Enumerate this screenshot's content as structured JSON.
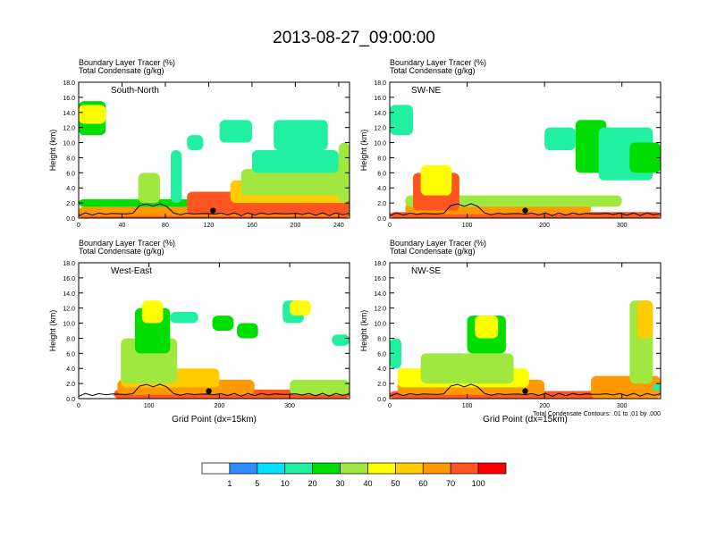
{
  "title": "2013-08-27_09:00:00",
  "chart_data": [
    {
      "type": "heatmap",
      "label": "South-North",
      "header": [
        "Boundary Layer Tracer    (%)",
        "Total Condensate    (g/kg)"
      ],
      "ylabel": "Height (km)",
      "xlabel": "",
      "yticks": [
        "0.0",
        "2.0",
        "4.0",
        "6.0",
        "8.0",
        "10.0",
        "12.0",
        "14.0",
        "16.0",
        "18.0"
      ],
      "ylim": [
        0,
        18
      ],
      "xlim": [
        0,
        250
      ],
      "xticks": [
        "0",
        "40",
        "80",
        "120",
        "160",
        "200",
        "240"
      ],
      "xtick_values": [
        0,
        40,
        80,
        120,
        160,
        200,
        240
      ],
      "marker": {
        "x": 124,
        "y": 1.0
      },
      "blobs": [
        {
          "x": [
            0,
            250
          ],
          "y": [
            0,
            0.8
          ],
          "v": 70
        },
        {
          "x": [
            0,
            250
          ],
          "y": [
            0.3,
            1.5
          ],
          "v": 60
        },
        {
          "x": [
            0,
            250
          ],
          "y": [
            1.5,
            2.5
          ],
          "v": 20
        },
        {
          "x": [
            100,
            250
          ],
          "y": [
            0.5,
            3.5
          ],
          "v": 70
        },
        {
          "x": [
            140,
            250
          ],
          "y": [
            2,
            5
          ],
          "v": 50
        },
        {
          "x": [
            150,
            250
          ],
          "y": [
            3,
            6.5
          ],
          "v": 30
        },
        {
          "x": [
            160,
            240
          ],
          "y": [
            6,
            9
          ],
          "v": 10
        },
        {
          "x": [
            130,
            160
          ],
          "y": [
            10,
            13
          ],
          "v": 10
        },
        {
          "x": [
            180,
            230
          ],
          "y": [
            9,
            13
          ],
          "v": 10
        },
        {
          "x": [
            0,
            25
          ],
          "y": [
            11,
            15.5
          ],
          "v": 20
        },
        {
          "x": [
            0,
            25
          ],
          "y": [
            12.5,
            15
          ],
          "v": 40
        },
        {
          "x": [
            55,
            75
          ],
          "y": [
            2,
            6
          ],
          "v": 30
        },
        {
          "x": [
            85,
            95
          ],
          "y": [
            2,
            9
          ],
          "v": 10
        },
        {
          "x": [
            100,
            115
          ],
          "y": [
            9,
            11
          ],
          "v": 10
        },
        {
          "x": [
            240,
            250
          ],
          "y": [
            2,
            10
          ],
          "v": 30
        }
      ]
    },
    {
      "type": "heatmap",
      "label": "SW-NE",
      "header": [
        "Boundary Layer Tracer    (%)",
        "Total Condensate    (g/kg)"
      ],
      "ylabel": "Height (km)",
      "xlabel": "",
      "yticks": [
        "0.0",
        "2.0",
        "4.0",
        "6.0",
        "8.0",
        "10.0",
        "12.0",
        "14.0",
        "16.0",
        "18.0"
      ],
      "ylim": [
        0,
        18
      ],
      "xlim": [
        0,
        350
      ],
      "xticks": [
        "0",
        "100",
        "200",
        "300"
      ],
      "xtick_values": [
        0,
        100,
        200,
        300
      ],
      "marker": {
        "x": 175,
        "y": 1.0
      },
      "blobs": [
        {
          "x": [
            0,
            350
          ],
          "y": [
            0,
            0.8
          ],
          "v": 70
        },
        {
          "x": [
            20,
            260
          ],
          "y": [
            0.5,
            2
          ],
          "v": 60
        },
        {
          "x": [
            20,
            300
          ],
          "y": [
            1.5,
            3
          ],
          "v": 30
        },
        {
          "x": [
            30,
            90
          ],
          "y": [
            1,
            6
          ],
          "v": 70
        },
        {
          "x": [
            40,
            80
          ],
          "y": [
            3,
            7
          ],
          "v": 40
        },
        {
          "x": [
            0,
            30
          ],
          "y": [
            11,
            15
          ],
          "v": 10
        },
        {
          "x": [
            240,
            280
          ],
          "y": [
            6,
            13
          ],
          "v": 20
        },
        {
          "x": [
            270,
            340
          ],
          "y": [
            5,
            12
          ],
          "v": 10
        },
        {
          "x": [
            200,
            240
          ],
          "y": [
            9,
            12
          ],
          "v": 10
        },
        {
          "x": [
            310,
            350
          ],
          "y": [
            6,
            10
          ],
          "v": 20
        }
      ]
    },
    {
      "type": "heatmap",
      "label": "West-East",
      "header": [
        "Boundary Layer Tracer    (%)",
        "Total Condensate    (g/kg)"
      ],
      "ylabel": "Height (km)",
      "xlabel": "Grid Point (dx=15km)",
      "yticks": [
        "0.0",
        "2.0",
        "4.0",
        "6.0",
        "8.0",
        "10.0",
        "12.0",
        "14.0",
        "16.0",
        "18.0"
      ],
      "ylim": [
        0,
        18
      ],
      "xlim": [
        0,
        385
      ],
      "xticks": [
        "0",
        "100",
        "200",
        "300"
      ],
      "xtick_values": [
        0,
        100,
        200,
        300
      ],
      "marker": {
        "x": 185,
        "y": 1.0
      },
      "blobs": [
        {
          "x": [
            50,
            385
          ],
          "y": [
            0,
            1.2
          ],
          "v": 70
        },
        {
          "x": [
            55,
            250
          ],
          "y": [
            0.5,
            2.5
          ],
          "v": 60
        },
        {
          "x": [
            60,
            200
          ],
          "y": [
            1.5,
            4
          ],
          "v": 50
        },
        {
          "x": [
            60,
            140
          ],
          "y": [
            2,
            8
          ],
          "v": 30
        },
        {
          "x": [
            80,
            130
          ],
          "y": [
            6,
            12
          ],
          "v": 20
        },
        {
          "x": [
            90,
            120
          ],
          "y": [
            10,
            13
          ],
          "v": 40
        },
        {
          "x": [
            130,
            170
          ],
          "y": [
            10,
            11.5
          ],
          "v": 10
        },
        {
          "x": [
            190,
            220
          ],
          "y": [
            9,
            11
          ],
          "v": 20
        },
        {
          "x": [
            225,
            255
          ],
          "y": [
            8,
            10
          ],
          "v": 20
        },
        {
          "x": [
            290,
            320
          ],
          "y": [
            10,
            13
          ],
          "v": 10
        },
        {
          "x": [
            300,
            330
          ],
          "y": [
            11,
            13
          ],
          "v": 40
        },
        {
          "x": [
            360,
            385
          ],
          "y": [
            7,
            8.5
          ],
          "v": 10
        },
        {
          "x": [
            300,
            385
          ],
          "y": [
            0.5,
            2.5
          ],
          "v": 30
        }
      ]
    },
    {
      "type": "heatmap",
      "label": "NW-SE",
      "header": [
        "Boundary Layer Tracer    (%)",
        "Total Condensate    (g/kg)"
      ],
      "ylabel": "Height (km)",
      "xlabel": "Grid Point (dx=15km)",
      "yticks": [
        "0.0",
        "2.0",
        "4.0",
        "6.0",
        "8.0",
        "10.0",
        "12.0",
        "14.0",
        "16.0",
        "18.0"
      ],
      "ylim": [
        0,
        18
      ],
      "xlim": [
        0,
        350
      ],
      "xticks": [
        "0",
        "100",
        "200",
        "300"
      ],
      "xtick_values": [
        0,
        100,
        200,
        300
      ],
      "marker": {
        "x": 175,
        "y": 1.0
      },
      "blobs": [
        {
          "x": [
            0,
            280
          ],
          "y": [
            0,
            1
          ],
          "v": 70
        },
        {
          "x": [
            10,
            200
          ],
          "y": [
            0.5,
            2.5
          ],
          "v": 60
        },
        {
          "x": [
            10,
            180
          ],
          "y": [
            1.5,
            4
          ],
          "v": 40
        },
        {
          "x": [
            40,
            160
          ],
          "y": [
            2,
            6
          ],
          "v": 30
        },
        {
          "x": [
            100,
            150
          ],
          "y": [
            6,
            11
          ],
          "v": 20
        },
        {
          "x": [
            110,
            140
          ],
          "y": [
            8,
            11
          ],
          "v": 40
        },
        {
          "x": [
            0,
            15
          ],
          "y": [
            4,
            8
          ],
          "v": 10
        },
        {
          "x": [
            260,
            350
          ],
          "y": [
            0,
            3
          ],
          "v": 60
        },
        {
          "x": [
            310,
            340
          ],
          "y": [
            2,
            13
          ],
          "v": 30
        },
        {
          "x": [
            320,
            340
          ],
          "y": [
            8,
            13
          ],
          "v": 50
        },
        {
          "x": [
            340,
            350
          ],
          "y": [
            1,
            2
          ],
          "v": 10
        }
      ],
      "footnote": "Total Condensate Contours: .01 to .01 by .000"
    }
  ],
  "colorbar": {
    "labels": [
      "1",
      "5",
      "10",
      "20",
      "30",
      "40",
      "50",
      "60",
      "70",
      "100"
    ],
    "colors": [
      "#ffffff",
      "#2f8dff",
      "#00e0ff",
      "#20f0a0",
      "#00dd00",
      "#a0e840",
      "#ffff00",
      "#ffcc00",
      "#ff9900",
      "#ff5522",
      "#ff0000"
    ]
  }
}
